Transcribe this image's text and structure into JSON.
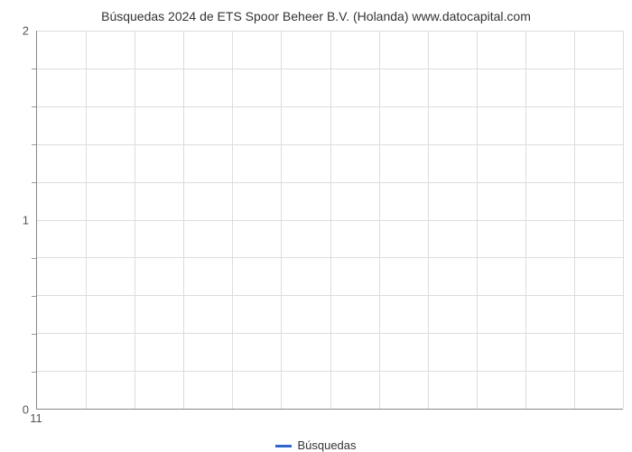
{
  "chart": {
    "type": "line",
    "title": "Búsquedas 2024 de ETS Spoor Beheer B.V. (Holanda) www.datocapital.com",
    "title_fontsize": 14,
    "title_color": "#333333",
    "background_color": "#ffffff",
    "axis_color": "#888888",
    "grid_color": "#dddddd",
    "tick_label_color": "#555555",
    "tick_label_fontsize": 13,
    "ylim": [
      0,
      2
    ],
    "y_major_ticks": [
      0,
      1,
      2
    ],
    "y_minor_tick_count": 4,
    "xlim": [
      11,
      23
    ],
    "x_labels": [
      "11"
    ],
    "x_grid_count": 12,
    "series": [
      {
        "label": "Búsquedas",
        "color": "#3366cc",
        "line_width": 3,
        "data": []
      }
    ],
    "legend": {
      "position": "bottom-center",
      "fontsize": 13,
      "text_color": "#333333"
    }
  }
}
